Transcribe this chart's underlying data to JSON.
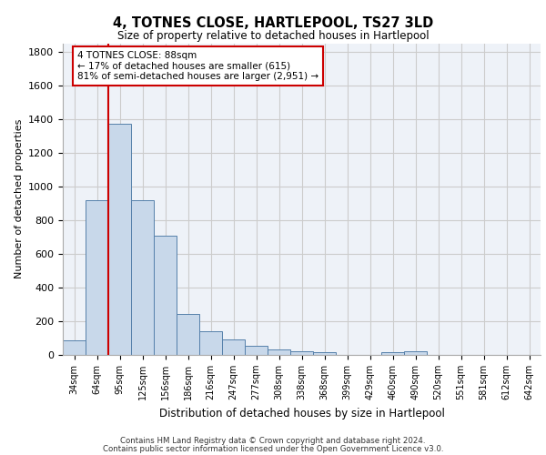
{
  "title": "4, TOTNES CLOSE, HARTLEPOOL, TS27 3LD",
  "subtitle": "Size of property relative to detached houses in Hartlepool",
  "xlabel": "Distribution of detached houses by size in Hartlepool",
  "ylabel": "Number of detached properties",
  "categories": [
    "34sqm",
    "64sqm",
    "95sqm",
    "125sqm",
    "156sqm",
    "186sqm",
    "216sqm",
    "247sqm",
    "277sqm",
    "308sqm",
    "338sqm",
    "368sqm",
    "399sqm",
    "429sqm",
    "460sqm",
    "490sqm",
    "520sqm",
    "551sqm",
    "581sqm",
    "612sqm",
    "642sqm"
  ],
  "values": [
    85,
    920,
    1370,
    920,
    710,
    245,
    140,
    90,
    55,
    30,
    20,
    15,
    0,
    0,
    15,
    20,
    0,
    0,
    0,
    0,
    0
  ],
  "bar_color": "#c8d8ea",
  "bar_edgecolor": "#5580aa",
  "bar_linewidth": 0.7,
  "bar_width": 1.0,
  "redline_x": 1.5,
  "redline_color": "#cc0000",
  "annotation_text": "4 TOTNES CLOSE: 88sqm\n← 17% of detached houses are smaller (615)\n81% of semi-detached houses are larger (2,951) →",
  "annotation_box_facecolor": "#ffffff",
  "annotation_box_edgecolor": "#cc0000",
  "ylim": [
    0,
    1850
  ],
  "yticks": [
    0,
    200,
    400,
    600,
    800,
    1000,
    1200,
    1400,
    1600,
    1800
  ],
  "grid_color": "#cccccc",
  "background_color": "#eef2f8",
  "footer_line1": "Contains HM Land Registry data © Crown copyright and database right 2024.",
  "footer_line2": "Contains public sector information licensed under the Open Government Licence v3.0."
}
